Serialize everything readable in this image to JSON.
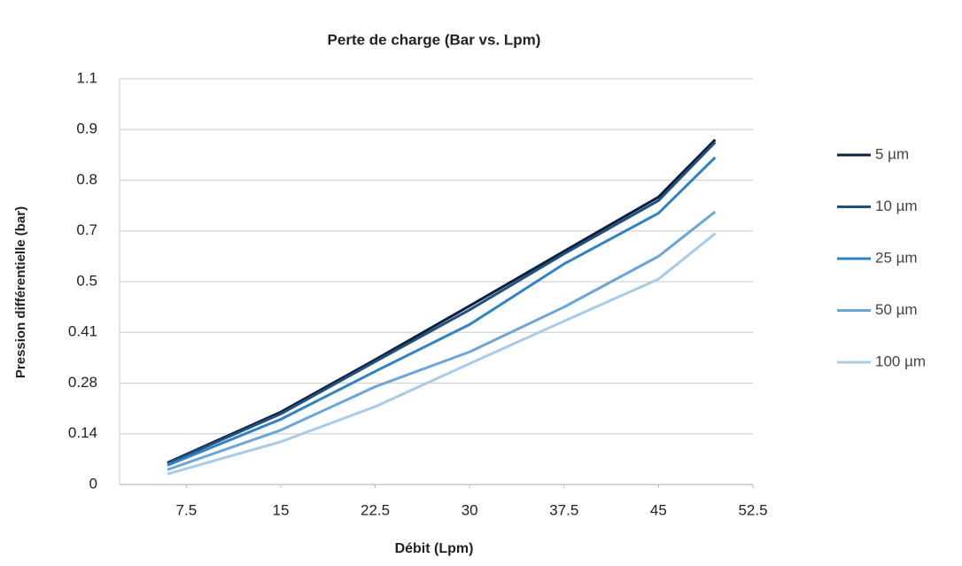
{
  "chart_data": {
    "type": "line",
    "title": "Perte de charge (Bar vs. Lpm)",
    "x_label": "Débit (Lpm)",
    "y_label": "Pression différentielle (bar)",
    "x": [
      6,
      15,
      22.5,
      30,
      37.5,
      45,
      49.5
    ],
    "xlim": [
      2.2,
      52.5
    ],
    "xticks": [
      7.5,
      15,
      22.5,
      30,
      37.5,
      45,
      52.5
    ],
    "ylim": [
      0,
      1.1
    ],
    "yticks": [
      0,
      0.14,
      0.28,
      0.41,
      0.5,
      0.7,
      0.8,
      0.9,
      1.1
    ],
    "grid": true,
    "legend": "right",
    "series": [
      {
        "name": "5 µm",
        "color": "#0d1f3c",
        "values": [
          0.06,
          0.2,
          0.34,
          0.457,
          0.62,
          0.767,
          0.88
        ]
      },
      {
        "name": "10 µm",
        "color": "#1f5080",
        "values": [
          0.058,
          0.195,
          0.335,
          0.45,
          0.61,
          0.76,
          0.875
        ]
      },
      {
        "name": "25 µm",
        "color": "#2f83c2",
        "values": [
          0.053,
          0.18,
          0.31,
          0.424,
          0.57,
          0.735,
          0.845
        ]
      },
      {
        "name": "50 µm",
        "color": "#6aa6d8",
        "values": [
          0.041,
          0.15,
          0.27,
          0.36,
          0.455,
          0.6,
          0.738
        ]
      },
      {
        "name": "100 µm",
        "color": "#a9cbe8",
        "values": [
          0.029,
          0.118,
          0.215,
          0.33,
          0.43,
          0.51,
          0.69
        ]
      }
    ]
  }
}
